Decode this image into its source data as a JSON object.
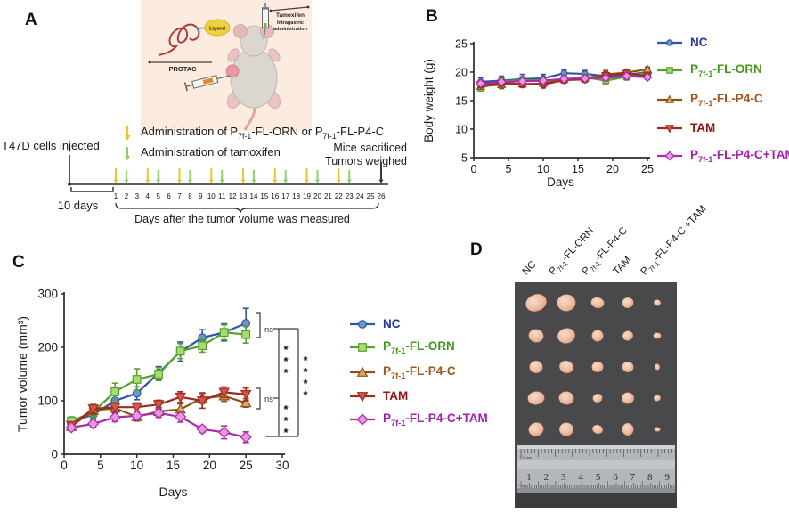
{
  "panel_a": {
    "label": "A",
    "illustration": {
      "ligand": "Ligand",
      "protac": "PROTAC",
      "tamoxifen_lines": [
        "Tamoxifen",
        "Intragastric",
        "administration"
      ]
    },
    "legend": [
      {
        "arrow_color": "#f2c233",
        "text_parts": [
          {
            "t": "Administration of P"
          },
          {
            "t": "7f-1",
            "sub": true
          },
          {
            "t": "-FL-ORN or P"
          },
          {
            "t": "7f-1",
            "sub": true
          },
          {
            "t": "-FL-P4-C"
          }
        ]
      },
      {
        "arrow_color": "#90d06a",
        "text_parts": [
          {
            "t": "Administration of tamoxifen"
          }
        ]
      }
    ],
    "timeline": {
      "start_label": "T47D cells injected",
      "pre_period_label": "10 days",
      "day_start": 1,
      "day_end": 26,
      "protac_days": [
        1,
        4,
        7,
        10,
        13,
        16,
        19,
        22
      ],
      "tamoxifen_days": [
        2,
        5,
        8,
        11,
        14,
        17,
        20,
        23
      ],
      "sacrifice_day": 26,
      "end_label_lines": [
        "Mice sacrificed",
        "Tumors weighed"
      ],
      "caption": "Days after the tumor volume was measured",
      "protac_arrow_color": "#f2c233",
      "tamoxifen_arrow_color": "#90d06a",
      "sacrifice_arrow_color": "#3a3a3a"
    }
  },
  "chart_data": [
    {
      "id": "b",
      "panel_label": "B",
      "type": "line",
      "title": "",
      "xlabel": "Days",
      "ylabel": "Body weight (g)",
      "x": [
        1,
        4,
        7,
        10,
        13,
        16,
        19,
        22,
        25
      ],
      "xlim": [
        0,
        25
      ],
      "xticks": [
        0,
        5,
        10,
        15,
        20,
        25
      ],
      "ylim": [
        5,
        25
      ],
      "yticks": [
        5,
        10,
        15,
        20,
        25
      ],
      "grid": false,
      "legend_position": "right",
      "series": [
        {
          "name": "NC",
          "name_parts": [
            {
              "t": "NC"
            }
          ],
          "marker": "circle",
          "line_color": "#2f55a4",
          "fill_color": "#6b97cf",
          "text_color": "#24359c",
          "values": [
            18.3,
            18.5,
            18.8,
            18.9,
            19.8,
            19.7,
            19.3,
            19.5,
            20.0
          ],
          "err": [
            0.7,
            0.8,
            0.8,
            0.7,
            0.6,
            0.6,
            0.7,
            0.8,
            0.6
          ]
        },
        {
          "name": "P7f-1-FL-ORN",
          "name_parts": [
            {
              "t": "P"
            },
            {
              "t": "7f-1",
              "sub": true
            },
            {
              "t": "-FL-ORN"
            }
          ],
          "marker": "square",
          "line_color": "#58a032",
          "fill_color": "#a8dc6a",
          "text_color": "#44961f",
          "values": [
            17.2,
            18.4,
            18.6,
            18.5,
            18.7,
            19.1,
            18.5,
            19.2,
            19.9
          ],
          "err": [
            0.5,
            0.6,
            0.6,
            0.6,
            0.6,
            0.5,
            0.7,
            0.6,
            0.5
          ]
        },
        {
          "name": "P7f-1-FL-P4-C",
          "name_parts": [
            {
              "t": "P"
            },
            {
              "t": "7f-1",
              "sub": true
            },
            {
              "t": "-FL-P4-C"
            }
          ],
          "marker": "triangle",
          "line_color": "#8a5118",
          "fill_color": "#dfa858",
          "text_color": "#a1571c",
          "values": [
            17.5,
            17.8,
            17.9,
            18.0,
            18.7,
            18.9,
            19.6,
            19.9,
            20.5
          ],
          "err": [
            0.5,
            0.7,
            0.6,
            0.6,
            0.6,
            0.6,
            0.7,
            0.6,
            0.4
          ]
        },
        {
          "name": "TAM",
          "name_parts": [
            {
              "t": "TAM"
            }
          ],
          "marker": "triangle-down",
          "line_color": "#9e2b21",
          "fill_color": "#d4564a",
          "text_color": "#8c1713",
          "values": [
            17.8,
            18.1,
            17.9,
            17.8,
            18.6,
            18.7,
            19.4,
            19.8,
            19.3
          ],
          "err": [
            0.5,
            0.5,
            0.5,
            0.6,
            0.5,
            0.5,
            0.6,
            0.5,
            0.5
          ]
        },
        {
          "name": "P7f-1-FL-P4-C+TAM",
          "name_parts": [
            {
              "t": "P"
            },
            {
              "t": "7f-1",
              "sub": true
            },
            {
              "t": "-FL-P4-C+TAM"
            }
          ],
          "marker": "diamond",
          "line_color": "#a82ba8",
          "fill_color": "#ec93e4",
          "text_color": "#a320a8",
          "values": [
            18.0,
            18.3,
            18.4,
            18.5,
            18.8,
            18.9,
            19.0,
            19.3,
            19.1
          ],
          "err": [
            0.4,
            0.5,
            0.5,
            0.5,
            0.4,
            0.4,
            0.5,
            0.5,
            0.4
          ]
        }
      ]
    },
    {
      "id": "c",
      "panel_label": "C",
      "type": "line",
      "title": "",
      "xlabel": "Days",
      "ylabel": "Tumor volume (mm³)",
      "x": [
        1,
        4,
        7,
        10,
        13,
        16,
        19,
        22,
        25
      ],
      "xlim": [
        0,
        30
      ],
      "xticks": [
        0,
        5,
        10,
        15,
        20,
        25,
        30
      ],
      "ylim": [
        0,
        300
      ],
      "yticks": [
        0,
        100,
        200,
        300
      ],
      "grid": false,
      "legend_position": "right",
      "series": [
        {
          "name": "NC",
          "name_parts": [
            {
              "t": "NC"
            }
          ],
          "marker": "circle",
          "line_color": "#2f55a4",
          "fill_color": "#6b97cf",
          "text_color": "#24359c",
          "values": [
            61,
            74,
            100,
            114,
            152,
            192,
            218,
            228,
            245
          ],
          "err": [
            8,
            8,
            10,
            12,
            12,
            18,
            15,
            16,
            28
          ]
        },
        {
          "name": "P7f-1-FL-ORN",
          "name_parts": [
            {
              "t": "P"
            },
            {
              "t": "7f-1",
              "sub": true
            },
            {
              "t": "-FL-ORN"
            }
          ],
          "marker": "square",
          "line_color": "#58a032",
          "fill_color": "#a8dc6a",
          "text_color": "#44961f",
          "values": [
            62,
            79,
            117,
            140,
            150,
            193,
            203,
            228,
            224
          ],
          "err": [
            8,
            10,
            16,
            20,
            12,
            14,
            12,
            14,
            16
          ]
        },
        {
          "name": "P7f-1-FL-P4-C",
          "name_parts": [
            {
              "t": "P"
            },
            {
              "t": "7f-1",
              "sub": true
            },
            {
              "t": "-FL-P4-C"
            }
          ],
          "marker": "triangle",
          "line_color": "#8a5118",
          "fill_color": "#dfa858",
          "text_color": "#a1571c",
          "values": [
            52,
            82,
            86,
            70,
            80,
            84,
            105,
            109,
            96
          ],
          "err": [
            6,
            8,
            10,
            8,
            8,
            10,
            10,
            10,
            8
          ]
        },
        {
          "name": "TAM",
          "name_parts": [
            {
              "t": "TAM"
            }
          ],
          "marker": "triangle-down",
          "line_color": "#9e2b21",
          "fill_color": "#d4564a",
          "text_color": "#8c1713",
          "values": [
            54,
            85,
            88,
            88,
            93,
            107,
            100,
            116,
            112
          ],
          "err": [
            6,
            8,
            8,
            8,
            8,
            10,
            14,
            10,
            12
          ]
        },
        {
          "name": "P7f-1-FL-P4-C+TAM",
          "name_parts": [
            {
              "t": "P"
            },
            {
              "t": "7f-1",
              "sub": true
            },
            {
              "t": "-FL-P4-C+TAM"
            }
          ],
          "marker": "diamond",
          "line_color": "#a82ba8",
          "fill_color": "#ec93e4",
          "text_color": "#a320a8",
          "values": [
            50,
            57,
            69,
            72,
            77,
            70,
            47,
            41,
            32
          ],
          "err": [
            5,
            6,
            8,
            8,
            8,
            10,
            6,
            12,
            10
          ]
        }
      ],
      "significance": {
        "ns_top": "ns",
        "ns_bottom": "ns",
        "bar_nc_vs_tam": "***",
        "bar_nc_vs_combo": "****",
        "bar_tam_vs_combo": "***"
      }
    }
  ],
  "panel_b": {
    "label": "B"
  },
  "panel_c": {
    "label": "C"
  },
  "panel_d": {
    "label": "D",
    "column_labels": [
      {
        "parts": [
          {
            "t": "NC"
          }
        ]
      },
      {
        "parts": [
          {
            "t": "P"
          },
          {
            "t": "7f-1",
            "sub": true
          },
          {
            "t": "-FL-ORN"
          }
        ]
      },
      {
        "parts": [
          {
            "t": "P"
          },
          {
            "t": "7f-1",
            "sub": true
          },
          {
            "t": "-FL-P4-C"
          }
        ]
      },
      {
        "parts": [
          {
            "t": "TAM"
          }
        ]
      },
      {
        "parts": [
          {
            "t": "P"
          },
          {
            "t": "7f-1",
            "sub": true
          },
          {
            "t": "-FL-P4-C +TAM"
          }
        ]
      }
    ],
    "rows": 5,
    "tumor_sizes": [
      [
        [
          24,
          19
        ],
        [
          21,
          19
        ],
        [
          15,
          12
        ],
        [
          13,
          12
        ],
        [
          8,
          7
        ]
      ],
      [
        [
          17,
          15
        ],
        [
          20,
          17
        ],
        [
          13,
          13
        ],
        [
          12,
          11
        ],
        [
          9,
          7
        ]
      ],
      [
        [
          15,
          14
        ],
        [
          16,
          14
        ],
        [
          13,
          12
        ],
        [
          13,
          12
        ],
        [
          6,
          7
        ]
      ],
      [
        [
          19,
          15
        ],
        [
          17,
          15
        ],
        [
          11,
          10
        ],
        [
          14,
          13
        ],
        [
          8,
          7
        ]
      ],
      [
        [
          17,
          15
        ],
        [
          16,
          15
        ],
        [
          12,
          10
        ],
        [
          13,
          14
        ],
        [
          7,
          5
        ]
      ]
    ],
    "ruler_numbers": [
      "1",
      "2",
      "3",
      "4",
      "5",
      "6",
      "7",
      "8",
      "9"
    ],
    "ruler_unit_top": "0.5 mm",
    "ruler_unit_side": "mm",
    "photo_bg": "#49494b",
    "tumor_color": "#eebfa4"
  }
}
